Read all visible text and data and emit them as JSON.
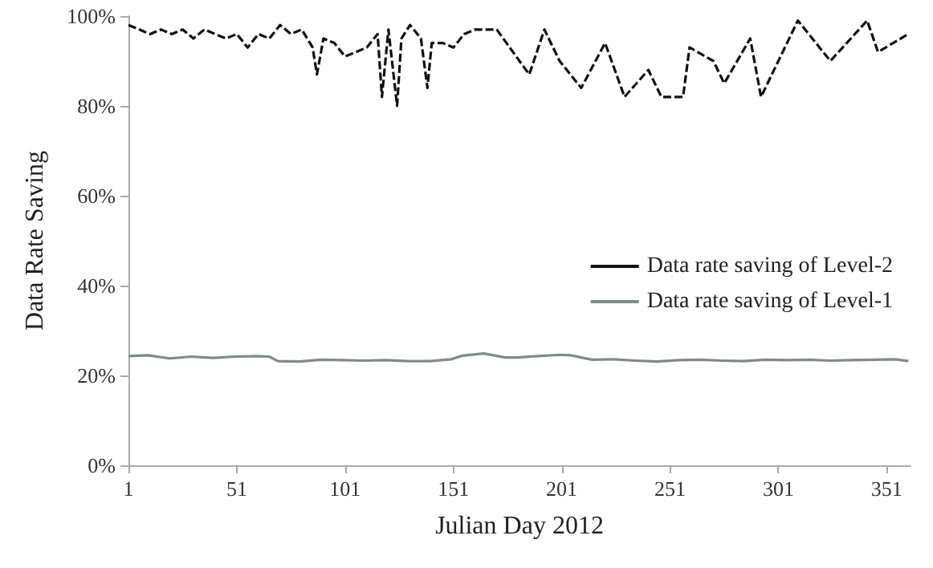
{
  "chart_data": {
    "type": "line",
    "xlabel": "Julian Day 2012",
    "ylabel": "Data Rate Saving",
    "xlim": [
      1,
      362
    ],
    "xticks": [
      1,
      51,
      101,
      151,
      201,
      251,
      301,
      351
    ],
    "ylim": [
      0,
      100
    ],
    "yticks": [
      {
        "value": 0,
        "label": "0%"
      },
      {
        "value": 20,
        "label": "20%"
      },
      {
        "value": 40,
        "label": "40%"
      },
      {
        "value": 60,
        "label": "60%"
      },
      {
        "value": 80,
        "label": "80%"
      },
      {
        "value": 100,
        "label": "100%"
      }
    ],
    "grid": false,
    "legend": "right",
    "marker": "none",
    "series": [
      {
        "name": "Data rate saving of Level-2",
        "color": "#111111",
        "line_style": "dashed",
        "x": [
          1,
          6,
          11,
          16,
          21,
          26,
          31,
          36,
          41,
          46,
          51,
          56,
          61,
          66,
          71,
          76,
          81,
          86,
          88,
          91,
          96,
          101,
          106,
          111,
          116,
          118,
          121,
          125,
          127,
          131,
          136,
          139,
          141,
          146,
          151,
          156,
          161,
          171,
          186,
          193,
          200,
          210,
          221,
          230,
          241,
          247,
          257,
          260,
          271,
          276,
          288,
          293,
          301,
          310,
          325,
          342,
          347,
          361
        ],
        "values": [
          98,
          97,
          96,
          97,
          96,
          97,
          95,
          97,
          96,
          95,
          96,
          93,
          96,
          95,
          98,
          96,
          97,
          93,
          87,
          95,
          94,
          91,
          92,
          93,
          96,
          82,
          97,
          80,
          95,
          98,
          95,
          84,
          94,
          94,
          93,
          96,
          97,
          97,
          87,
          97,
          90,
          84,
          94,
          82,
          88,
          82,
          82,
          93,
          90,
          85,
          95,
          82,
          90,
          99,
          90,
          99,
          92,
          96
        ]
      },
      {
        "name": "Data rate saving of Level-1",
        "color": "#808a88",
        "line_style": "solid",
        "x": [
          1,
          10,
          20,
          30,
          40,
          50,
          60,
          66,
          70,
          80,
          90,
          100,
          110,
          120,
          130,
          140,
          150,
          155,
          165,
          175,
          180,
          190,
          200,
          205,
          210,
          215,
          225,
          235,
          245,
          255,
          265,
          275,
          285,
          295,
          305,
          315,
          325,
          335,
          345,
          355,
          361
        ],
        "values": [
          24.3,
          24.5,
          23.8,
          24.2,
          23.9,
          24.2,
          24.3,
          24.2,
          23.2,
          23.1,
          23.5,
          23.4,
          23.3,
          23.4,
          23.2,
          23.2,
          23.6,
          24.4,
          24.9,
          24,
          24,
          24.3,
          24.6,
          24.5,
          24,
          23.5,
          23.6,
          23.3,
          23.1,
          23.4,
          23.5,
          23.3,
          23.2,
          23.5,
          23.4,
          23.5,
          23.3,
          23.4,
          23.5,
          23.6,
          23.2
        ]
      }
    ]
  }
}
